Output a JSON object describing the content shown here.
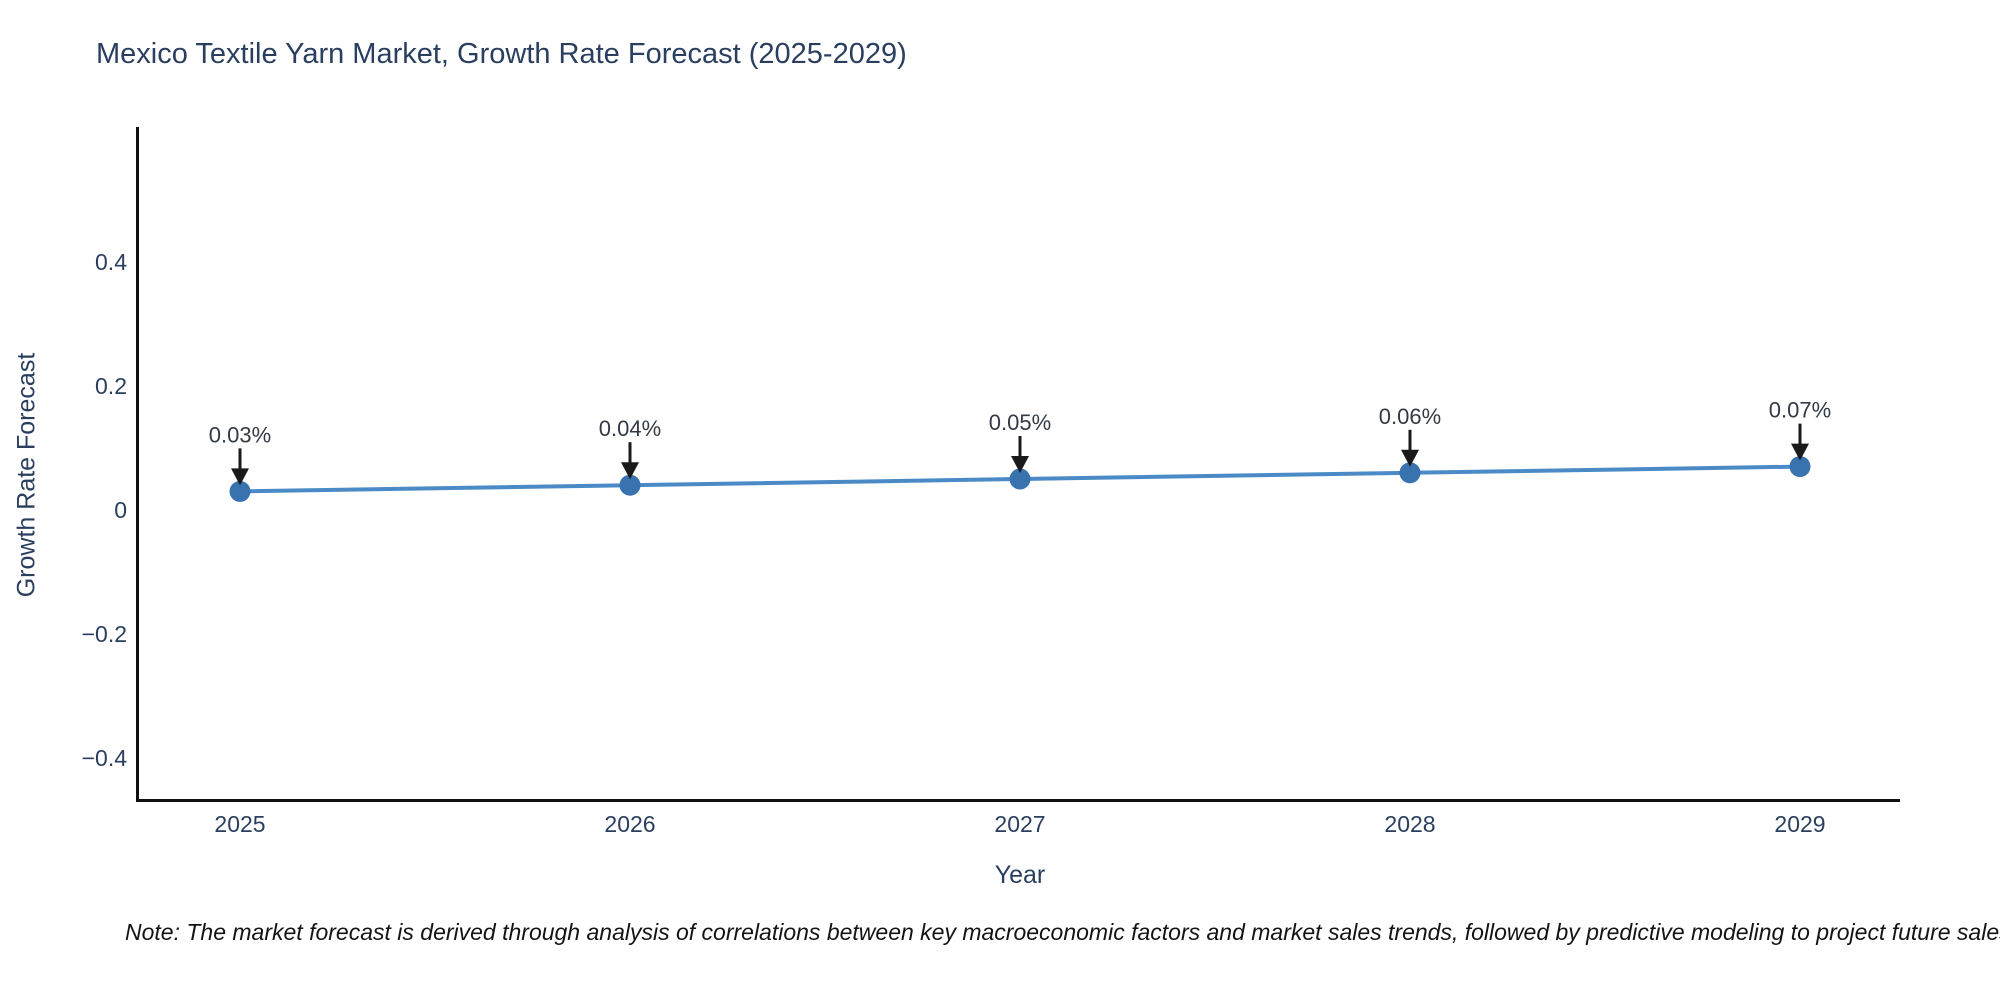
{
  "title": "Mexico Textile Yarn Market, Growth Rate Forecast (2025-2029)",
  "note": "Note: The market forecast is derived through analysis of correlations between key macroeconomic factors and market sales trends, followed by predictive modeling to project future sales.",
  "colors": {
    "background": "#ffffff",
    "axis_line": "#101010",
    "series_line": "#4a8ac6",
    "marker_fill": "#3873b0",
    "annotation_arrow": "#1a1a1a",
    "title_text": "#2a3f5f",
    "tick_text": "#2a3f5f",
    "annotation_text": "#333a45",
    "note_text": "#141414"
  },
  "chart_data": {
    "type": "line",
    "title": "Mexico Textile Yarn Market, Growth Rate Forecast (2025-2029)",
    "xlabel": "Year",
    "ylabel": "Growth Rate Forecast",
    "x": [
      2025,
      2026,
      2027,
      2028,
      2029
    ],
    "x_tick_labels": [
      "2025",
      "2026",
      "2027",
      "2028",
      "2029"
    ],
    "series": [
      {
        "name": "Growth Rate Forecast",
        "values": [
          0.03,
          0.04,
          0.05,
          0.06,
          0.07
        ]
      }
    ],
    "point_labels": [
      "0.03%",
      "0.04%",
      "0.05%",
      "0.06%",
      "0.07%"
    ],
    "y_ticks": [
      0.4,
      0.2,
      0,
      -0.2,
      -0.4
    ],
    "y_tick_labels": [
      "0.4",
      "0.2",
      "0",
      "−0.2",
      "−0.4"
    ],
    "ylim": [
      -0.47,
      0.62
    ],
    "grid": false,
    "legend_position": "none",
    "annotation_style": "arrow-down-to-point"
  }
}
